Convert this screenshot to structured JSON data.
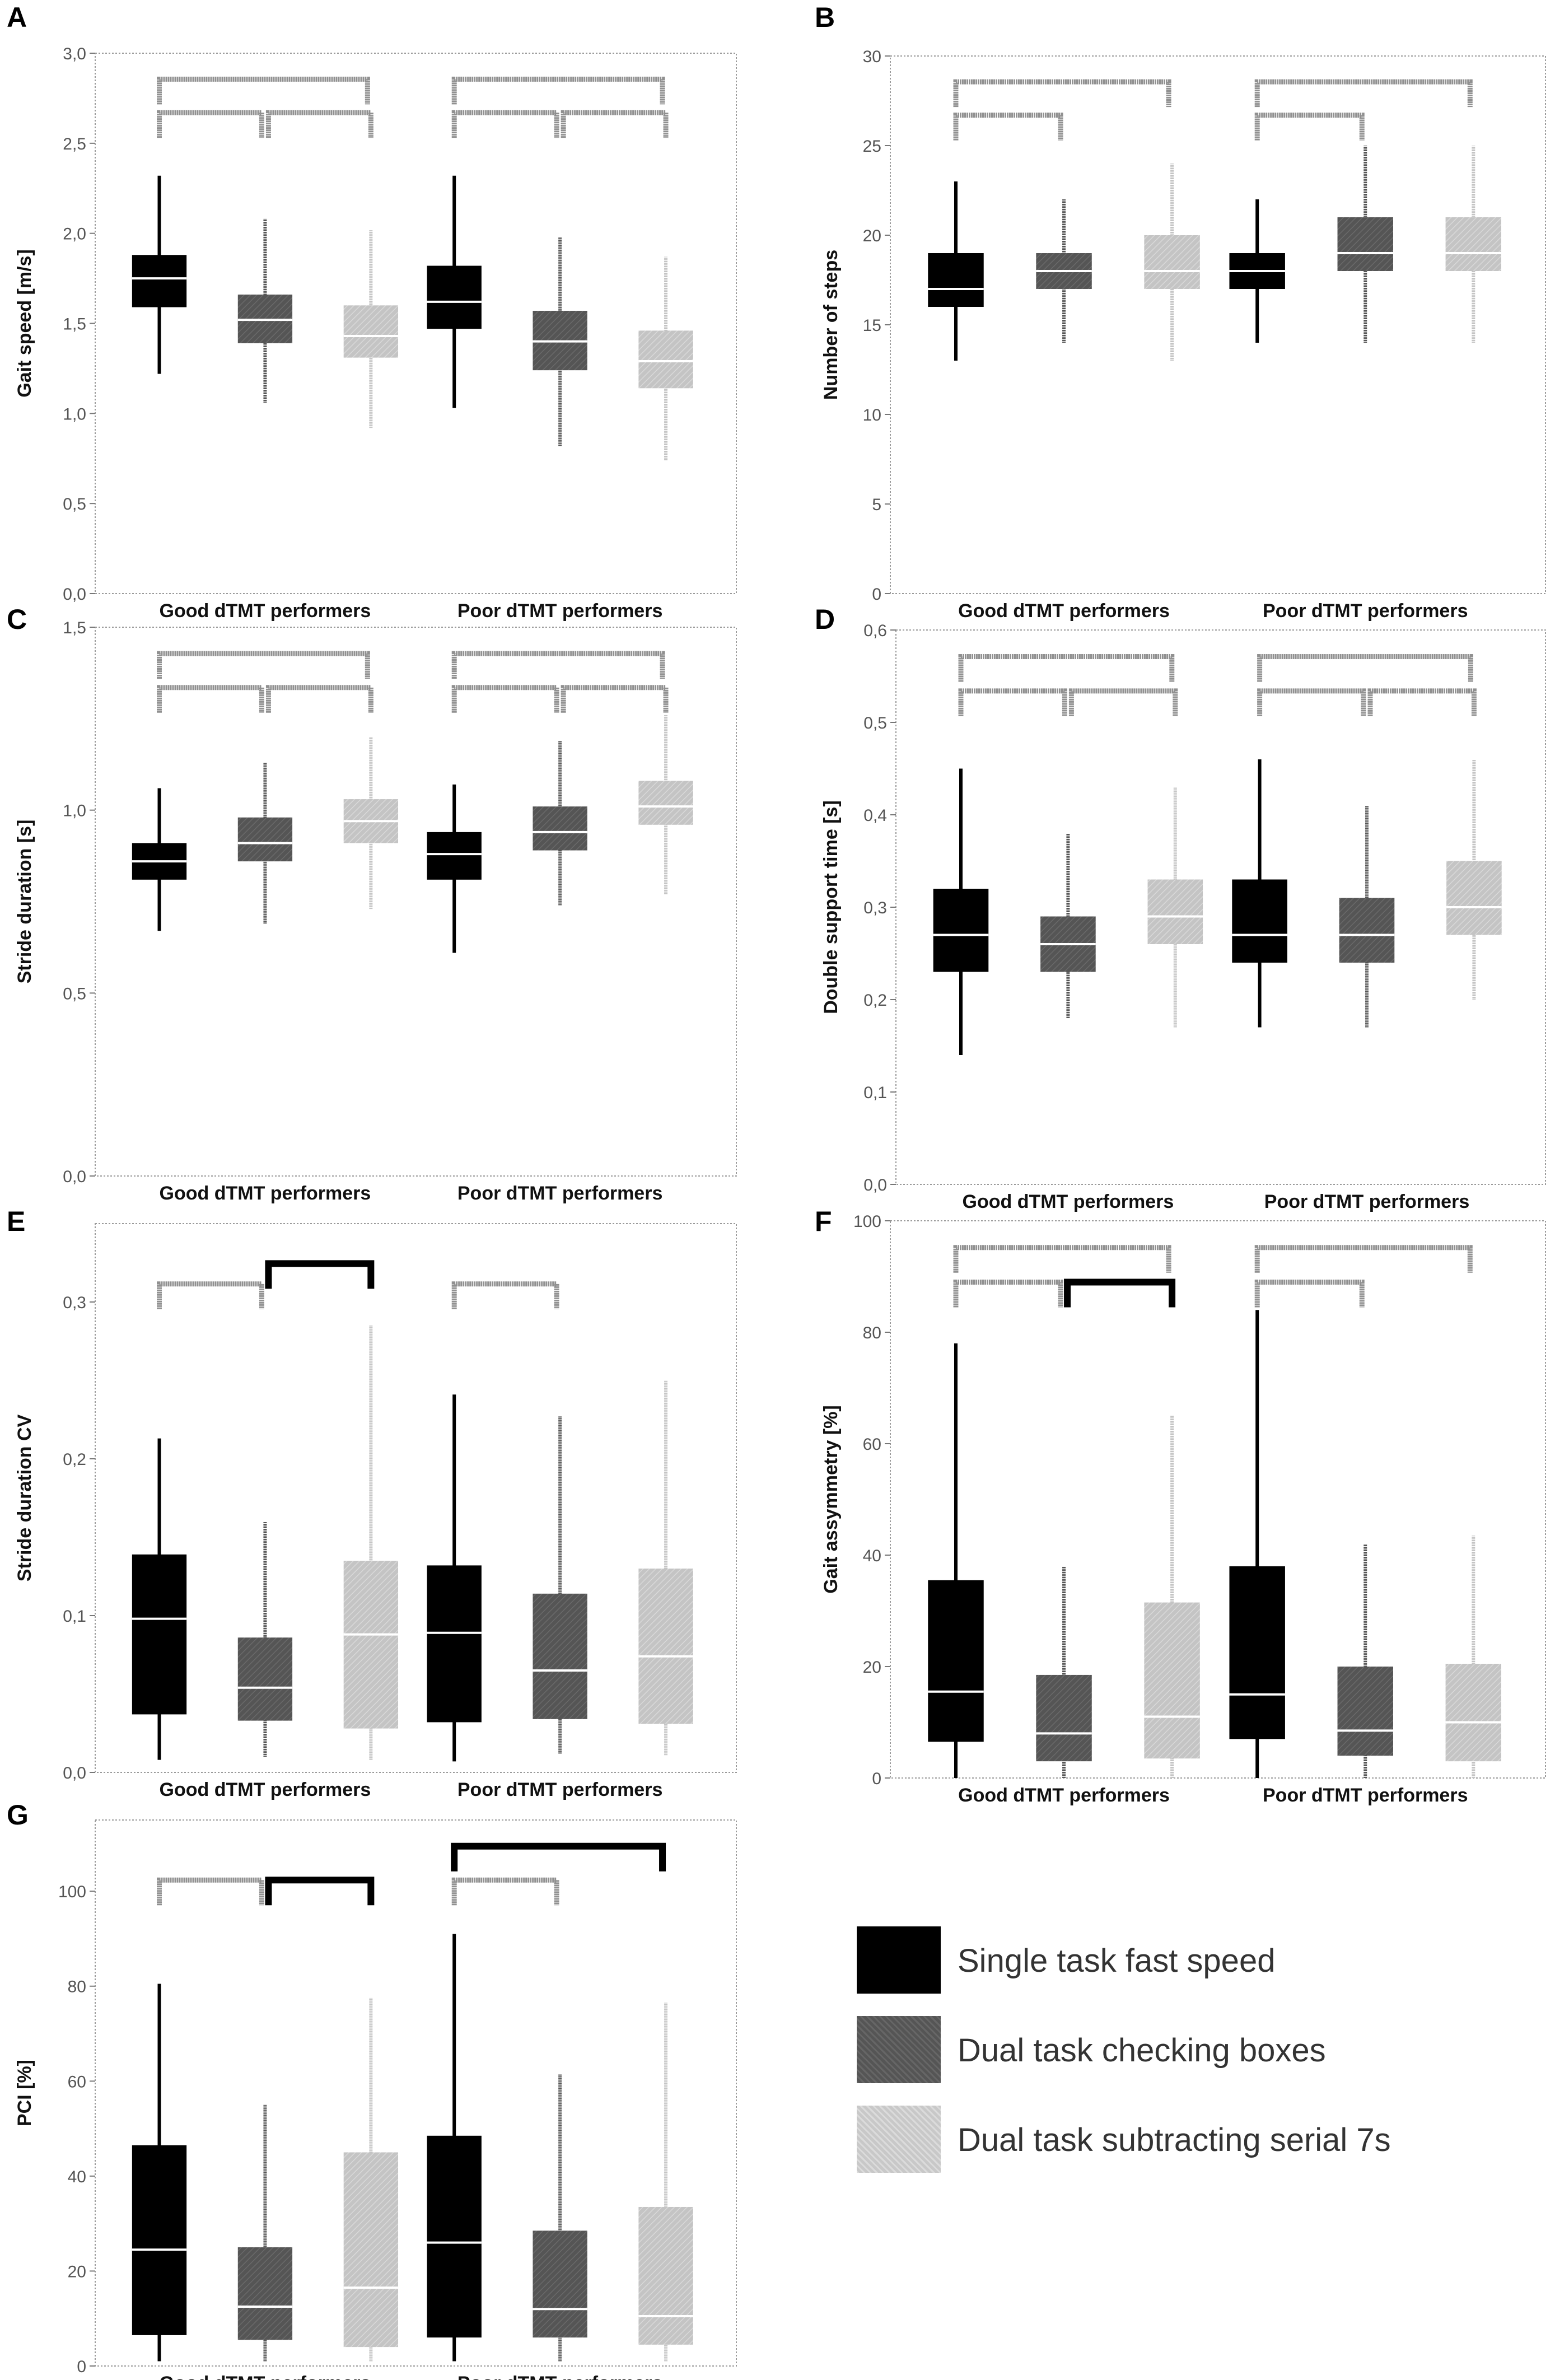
{
  "colors": {
    "single": "#000000",
    "checking": "#555555",
    "subtracting": "#c4c4c4",
    "frame": "#999999",
    "bracket_grey": "#909090",
    "bracket_black": "#000000",
    "median_line": "#ffffff"
  },
  "legend": {
    "items": [
      {
        "label": "Single task fast speed",
        "style": "single"
      },
      {
        "label": "Dual task checking boxes",
        "style": "checking"
      },
      {
        "label": "Dual task subtracting serial 7s",
        "style": "subtracting"
      }
    ]
  },
  "chart_data": [
    {
      "id": "A",
      "type": "box",
      "letter": "A",
      "ylabel": "Gait speed [m/s]",
      "ylim": [
        0,
        3.0
      ],
      "yticks": [
        0,
        0.5,
        1.0,
        1.5,
        2.0,
        2.5,
        3.0
      ],
      "yticklabels": [
        "0,0",
        "0,5",
        "1,0",
        "1,5",
        "2,0",
        "2,5",
        "3,0"
      ],
      "groups": [
        "Good dTMT performers",
        "Poor dTMT performers"
      ],
      "series": [
        "Single task fast speed",
        "Dual task checking boxes",
        "Dual task subtracting serial 7s"
      ],
      "boxes": [
        {
          "group": 0,
          "series": 0,
          "whisker_low": 1.22,
          "q1": 1.59,
          "median": 1.75,
          "q3": 1.88,
          "whisker_high": 2.32
        },
        {
          "group": 0,
          "series": 1,
          "whisker_low": 1.06,
          "q1": 1.39,
          "median": 1.52,
          "q3": 1.66,
          "whisker_high": 2.08
        },
        {
          "group": 0,
          "series": 2,
          "whisker_low": 0.92,
          "q1": 1.31,
          "median": 1.43,
          "q3": 1.6,
          "whisker_high": 2.02
        },
        {
          "group": 1,
          "series": 0,
          "whisker_low": 1.03,
          "q1": 1.47,
          "median": 1.62,
          "q3": 1.82,
          "whisker_high": 2.32
        },
        {
          "group": 1,
          "series": 1,
          "whisker_low": 0.82,
          "q1": 1.24,
          "median": 1.4,
          "q3": 1.57,
          "whisker_high": 1.98
        },
        {
          "group": 1,
          "series": 2,
          "whisker_low": 0.74,
          "q1": 1.14,
          "median": 1.29,
          "q3": 1.46,
          "whisker_high": 1.87
        }
      ],
      "brackets": [
        {
          "group": 0,
          "from": 0,
          "to": 1,
          "level": 0,
          "color": "grey"
        },
        {
          "group": 0,
          "from": 1,
          "to": 2,
          "level": 0,
          "color": "grey"
        },
        {
          "group": 0,
          "from": 0,
          "to": 2,
          "level": 1,
          "color": "grey"
        },
        {
          "group": 1,
          "from": 0,
          "to": 1,
          "level": 0,
          "color": "grey"
        },
        {
          "group": 1,
          "from": 1,
          "to": 2,
          "level": 0,
          "color": "grey"
        },
        {
          "group": 1,
          "from": 0,
          "to": 2,
          "level": 1,
          "color": "grey"
        }
      ]
    },
    {
      "id": "B",
      "type": "box",
      "letter": "B",
      "ylabel": "Number of steps",
      "ylim": [
        0,
        30
      ],
      "yticks": [
        0,
        5,
        10,
        15,
        20,
        25,
        30
      ],
      "yticklabels": [
        "0",
        "5",
        "10",
        "15",
        "20",
        "25",
        "30"
      ],
      "groups": [
        "Good dTMT performers",
        "Poor dTMT performers"
      ],
      "series": [
        "Single task fast speed",
        "Dual task checking boxes",
        "Dual task subtracting serial 7s"
      ],
      "boxes": [
        {
          "group": 0,
          "series": 0,
          "whisker_low": 13,
          "q1": 16,
          "median": 17,
          "q3": 19,
          "whisker_high": 23
        },
        {
          "group": 0,
          "series": 1,
          "whisker_low": 14,
          "q1": 17,
          "median": 18,
          "q3": 19,
          "whisker_high": 22
        },
        {
          "group": 0,
          "series": 2,
          "whisker_low": 13,
          "q1": 17,
          "median": 18,
          "q3": 20,
          "whisker_high": 24
        },
        {
          "group": 1,
          "series": 0,
          "whisker_low": 14,
          "q1": 17,
          "median": 18,
          "q3": 19,
          "whisker_high": 22
        },
        {
          "group": 1,
          "series": 1,
          "whisker_low": 14,
          "q1": 18,
          "median": 19,
          "q3": 21,
          "whisker_high": 25
        },
        {
          "group": 1,
          "series": 2,
          "whisker_low": 14,
          "q1": 18,
          "median": 19,
          "q3": 21,
          "whisker_high": 25
        }
      ],
      "brackets": [
        {
          "group": 0,
          "from": 0,
          "to": 1,
          "level": 0,
          "color": "grey"
        },
        {
          "group": 0,
          "from": 0,
          "to": 2,
          "level": 1,
          "color": "grey"
        },
        {
          "group": 1,
          "from": 0,
          "to": 1,
          "level": 0,
          "color": "grey"
        },
        {
          "group": 1,
          "from": 0,
          "to": 2,
          "level": 1,
          "color": "grey"
        }
      ]
    },
    {
      "id": "C",
      "type": "box",
      "letter": "C",
      "ylabel": "Stride duration [s]",
      "ylim": [
        0,
        1.5
      ],
      "yticks": [
        0,
        0.5,
        1.0,
        1.5
      ],
      "yticklabels": [
        "0,0",
        "0,5",
        "1,0",
        "1,5"
      ],
      "groups": [
        "Good dTMT performers",
        "Poor dTMT performers"
      ],
      "series": [
        "Single task fast speed",
        "Dual task checking boxes",
        "Dual task subtracting serial 7s"
      ],
      "boxes": [
        {
          "group": 0,
          "series": 0,
          "whisker_low": 0.67,
          "q1": 0.81,
          "median": 0.86,
          "q3": 0.91,
          "whisker_high": 1.06
        },
        {
          "group": 0,
          "series": 1,
          "whisker_low": 0.69,
          "q1": 0.86,
          "median": 0.91,
          "q3": 0.98,
          "whisker_high": 1.13
        },
        {
          "group": 0,
          "series": 2,
          "whisker_low": 0.73,
          "q1": 0.91,
          "median": 0.97,
          "q3": 1.03,
          "whisker_high": 1.2
        },
        {
          "group": 1,
          "series": 0,
          "whisker_low": 0.61,
          "q1": 0.81,
          "median": 0.88,
          "q3": 0.94,
          "whisker_high": 1.07
        },
        {
          "group": 1,
          "series": 1,
          "whisker_low": 0.74,
          "q1": 0.89,
          "median": 0.94,
          "q3": 1.01,
          "whisker_high": 1.19
        },
        {
          "group": 1,
          "series": 2,
          "whisker_low": 0.77,
          "q1": 0.96,
          "median": 1.01,
          "q3": 1.08,
          "whisker_high": 1.26
        }
      ],
      "brackets": [
        {
          "group": 0,
          "from": 0,
          "to": 1,
          "level": 0,
          "color": "grey"
        },
        {
          "group": 0,
          "from": 1,
          "to": 2,
          "level": 0,
          "color": "grey"
        },
        {
          "group": 0,
          "from": 0,
          "to": 2,
          "level": 1,
          "color": "grey"
        },
        {
          "group": 1,
          "from": 0,
          "to": 1,
          "level": 0,
          "color": "grey"
        },
        {
          "group": 1,
          "from": 1,
          "to": 2,
          "level": 0,
          "color": "grey"
        },
        {
          "group": 1,
          "from": 0,
          "to": 2,
          "level": 1,
          "color": "grey"
        }
      ]
    },
    {
      "id": "D",
      "type": "box",
      "letter": "D",
      "ylabel": "Double support time [s]",
      "ylim": [
        0,
        0.6
      ],
      "yticks": [
        0,
        0.1,
        0.2,
        0.3,
        0.4,
        0.5,
        0.6
      ],
      "yticklabels": [
        "0,0",
        "0,1",
        "0,2",
        "0,3",
        "0,4",
        "0,5",
        "0,6"
      ],
      "groups": [
        "Good dTMT performers",
        "Poor dTMT performers"
      ],
      "series": [
        "Single task fast speed",
        "Dual task checking boxes",
        "Dual task subtracting serial 7s"
      ],
      "boxes": [
        {
          "group": 0,
          "series": 0,
          "whisker_low": 0.14,
          "q1": 0.23,
          "median": 0.27,
          "q3": 0.32,
          "whisker_high": 0.45
        },
        {
          "group": 0,
          "series": 1,
          "whisker_low": 0.18,
          "q1": 0.23,
          "median": 0.26,
          "q3": 0.29,
          "whisker_high": 0.38
        },
        {
          "group": 0,
          "series": 2,
          "whisker_low": 0.17,
          "q1": 0.26,
          "median": 0.29,
          "q3": 0.33,
          "whisker_high": 0.43
        },
        {
          "group": 1,
          "series": 0,
          "whisker_low": 0.17,
          "q1": 0.24,
          "median": 0.27,
          "q3": 0.33,
          "whisker_high": 0.46
        },
        {
          "group": 1,
          "series": 1,
          "whisker_low": 0.17,
          "q1": 0.24,
          "median": 0.27,
          "q3": 0.31,
          "whisker_high": 0.41
        },
        {
          "group": 1,
          "series": 2,
          "whisker_low": 0.2,
          "q1": 0.27,
          "median": 0.3,
          "q3": 0.35,
          "whisker_high": 0.46
        }
      ],
      "brackets": [
        {
          "group": 0,
          "from": 0,
          "to": 1,
          "level": 0,
          "color": "grey"
        },
        {
          "group": 0,
          "from": 1,
          "to": 2,
          "level": 0,
          "color": "grey"
        },
        {
          "group": 0,
          "from": 0,
          "to": 2,
          "level": 1,
          "color": "grey"
        },
        {
          "group": 1,
          "from": 0,
          "to": 1,
          "level": 0,
          "color": "grey"
        },
        {
          "group": 1,
          "from": 1,
          "to": 2,
          "level": 0,
          "color": "grey"
        },
        {
          "group": 1,
          "from": 0,
          "to": 2,
          "level": 1,
          "color": "grey"
        }
      ]
    },
    {
      "id": "E",
      "type": "box",
      "letter": "E",
      "ylabel": "Stride duration CV",
      "ylim": [
        0,
        0.35
      ],
      "yticks": [
        0,
        0.1,
        0.2,
        0.3
      ],
      "yticklabels": [
        "0,0",
        "0,1",
        "0,2",
        "0,3"
      ],
      "groups": [
        "Good dTMT performers",
        "Poor dTMT performers"
      ],
      "series": [
        "Single task fast speed",
        "Dual task checking boxes",
        "Dual task subtracting serial 7s"
      ],
      "boxes": [
        {
          "group": 0,
          "series": 0,
          "whisker_low": 0.008,
          "q1": 0.037,
          "median": 0.098,
          "q3": 0.139,
          "whisker_high": 0.213
        },
        {
          "group": 0,
          "series": 1,
          "whisker_low": 0.01,
          "q1": 0.033,
          "median": 0.054,
          "q3": 0.086,
          "whisker_high": 0.16
        },
        {
          "group": 0,
          "series": 2,
          "whisker_low": 0.008,
          "q1": 0.028,
          "median": 0.088,
          "q3": 0.135,
          "whisker_high": 0.285
        },
        {
          "group": 1,
          "series": 0,
          "whisker_low": 0.007,
          "q1": 0.032,
          "median": 0.089,
          "q3": 0.132,
          "whisker_high": 0.241
        },
        {
          "group": 1,
          "series": 1,
          "whisker_low": 0.012,
          "q1": 0.034,
          "median": 0.065,
          "q3": 0.114,
          "whisker_high": 0.227
        },
        {
          "group": 1,
          "series": 2,
          "whisker_low": 0.011,
          "q1": 0.031,
          "median": 0.074,
          "q3": 0.13,
          "whisker_high": 0.25
        }
      ],
      "brackets": [
        {
          "group": 0,
          "from": 0,
          "to": 1,
          "level": 0,
          "color": "grey"
        },
        {
          "group": 0,
          "from": 1,
          "to": 2,
          "level": 0.6,
          "color": "black"
        },
        {
          "group": 1,
          "from": 0,
          "to": 1,
          "level": 0,
          "color": "grey"
        }
      ]
    },
    {
      "id": "F",
      "type": "box",
      "letter": "F",
      "ylabel": "Gait assymmetry [%]",
      "ylim": [
        0,
        100
      ],
      "yticks": [
        0,
        20,
        40,
        60,
        80,
        100
      ],
      "yticklabels": [
        "0",
        "20",
        "40",
        "60",
        "80",
        "100"
      ],
      "groups": [
        "Good dTMT performers",
        "Poor dTMT performers"
      ],
      "series": [
        "Single task fast speed",
        "Dual task checking boxes",
        "Dual task subtracting serial 7s"
      ],
      "boxes": [
        {
          "group": 0,
          "series": 0,
          "whisker_low": 0,
          "q1": 6.5,
          "median": 15.5,
          "q3": 35.5,
          "whisker_high": 78
        },
        {
          "group": 0,
          "series": 1,
          "whisker_low": 0,
          "q1": 3.0,
          "median": 8.0,
          "q3": 18.5,
          "whisker_high": 38
        },
        {
          "group": 0,
          "series": 2,
          "whisker_low": 0,
          "q1": 3.5,
          "median": 11.0,
          "q3": 31.5,
          "whisker_high": 65
        },
        {
          "group": 1,
          "series": 0,
          "whisker_low": 0,
          "q1": 7.0,
          "median": 15.0,
          "q3": 38.0,
          "whisker_high": 84
        },
        {
          "group": 1,
          "series": 1,
          "whisker_low": 0,
          "q1": 4.0,
          "median": 8.5,
          "q3": 20.0,
          "whisker_high": 42
        },
        {
          "group": 1,
          "series": 2,
          "whisker_low": 0,
          "q1": 3.0,
          "median": 10.0,
          "q3": 20.5,
          "whisker_high": 43.5
        }
      ],
      "brackets": [
        {
          "group": 0,
          "from": 0,
          "to": 1,
          "level": 0,
          "color": "grey"
        },
        {
          "group": 0,
          "from": 1,
          "to": 2,
          "level": 0,
          "color": "black"
        },
        {
          "group": 0,
          "from": 0,
          "to": 2,
          "level": 1,
          "color": "grey"
        },
        {
          "group": 1,
          "from": 0,
          "to": 1,
          "level": 0,
          "color": "grey"
        },
        {
          "group": 1,
          "from": 0,
          "to": 2,
          "level": 1,
          "color": "grey"
        }
      ]
    },
    {
      "id": "G",
      "type": "box",
      "letter": "G",
      "ylabel": "PCI [%]",
      "ylim": [
        0,
        115
      ],
      "yticks": [
        0,
        20,
        40,
        60,
        80,
        100
      ],
      "yticklabels": [
        "0",
        "20",
        "40",
        "60",
        "80",
        "100"
      ],
      "groups": [
        "Good dTMT performers",
        "Poor dTMT performers"
      ],
      "series": [
        "Single task fast speed",
        "Dual task checking boxes",
        "Dual task subtracting serial 7s"
      ],
      "boxes": [
        {
          "group": 0,
          "series": 0,
          "whisker_low": 1,
          "q1": 6.5,
          "median": 24.5,
          "q3": 46.5,
          "whisker_high": 80.5
        },
        {
          "group": 0,
          "series": 1,
          "whisker_low": 1,
          "q1": 5.5,
          "median": 12.5,
          "q3": 25.0,
          "whisker_high": 55
        },
        {
          "group": 0,
          "series": 2,
          "whisker_low": 1,
          "q1": 4.0,
          "median": 16.5,
          "q3": 45.0,
          "whisker_high": 77.5
        },
        {
          "group": 1,
          "series": 0,
          "whisker_low": 1,
          "q1": 6.0,
          "median": 26.0,
          "q3": 48.5,
          "whisker_high": 91
        },
        {
          "group": 1,
          "series": 1,
          "whisker_low": 1,
          "q1": 6.0,
          "median": 12.0,
          "q3": 28.5,
          "whisker_high": 61.5
        },
        {
          "group": 1,
          "series": 2,
          "whisker_low": 1,
          "q1": 4.5,
          "median": 10.5,
          "q3": 33.5,
          "whisker_high": 76.5
        }
      ],
      "brackets": [
        {
          "group": 0,
          "from": 0,
          "to": 1,
          "level": 0,
          "color": "grey"
        },
        {
          "group": 0,
          "from": 1,
          "to": 2,
          "level": 0,
          "color": "black"
        },
        {
          "group": 1,
          "from": 0,
          "to": 1,
          "level": 0,
          "color": "grey"
        },
        {
          "group": 1,
          "from": 0,
          "to": 2,
          "level": 1,
          "color": "black"
        }
      ]
    }
  ]
}
